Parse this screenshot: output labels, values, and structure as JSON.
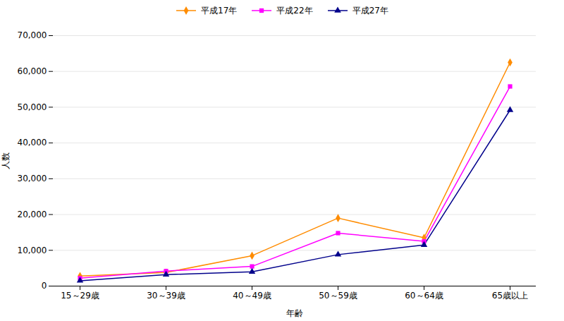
{
  "chart_data": {
    "type": "line",
    "xlabel": "年齢",
    "ylabel": "人数",
    "categories": [
      "15～29歳",
      "30～39歳",
      "40～49歳",
      "50～59歳",
      "60～64歳",
      "65歳以上"
    ],
    "series": [
      {
        "name": "平成17年",
        "color": "#FF8C00",
        "marker": "diamond",
        "values": [
          2800,
          3800,
          8500,
          19000,
          13500,
          62500
        ]
      },
      {
        "name": "平成22年",
        "color": "#FF00FF",
        "marker": "square",
        "values": [
          2200,
          4200,
          5500,
          14800,
          12500,
          55800
        ]
      },
      {
        "name": "平成27年",
        "color": "#00008B",
        "marker": "triangle",
        "values": [
          1500,
          3200,
          4000,
          8800,
          11500,
          49200
        ]
      }
    ],
    "ylim": [
      0,
      70000
    ],
    "yticks": [
      0,
      {
        "value": 10000,
        "label": "10,000"
      },
      {
        "value": 20000,
        "label": "20,000"
      },
      {
        "value": 30000,
        "label": "30,000"
      },
      {
        "value": 40000,
        "label": "40,000"
      },
      {
        "value": 50000,
        "label": "50,000"
      },
      {
        "value": 60000,
        "label": "60,000"
      },
      {
        "value": 70000,
        "label": "70,000"
      }
    ],
    "grid": true,
    "legend": "top"
  }
}
